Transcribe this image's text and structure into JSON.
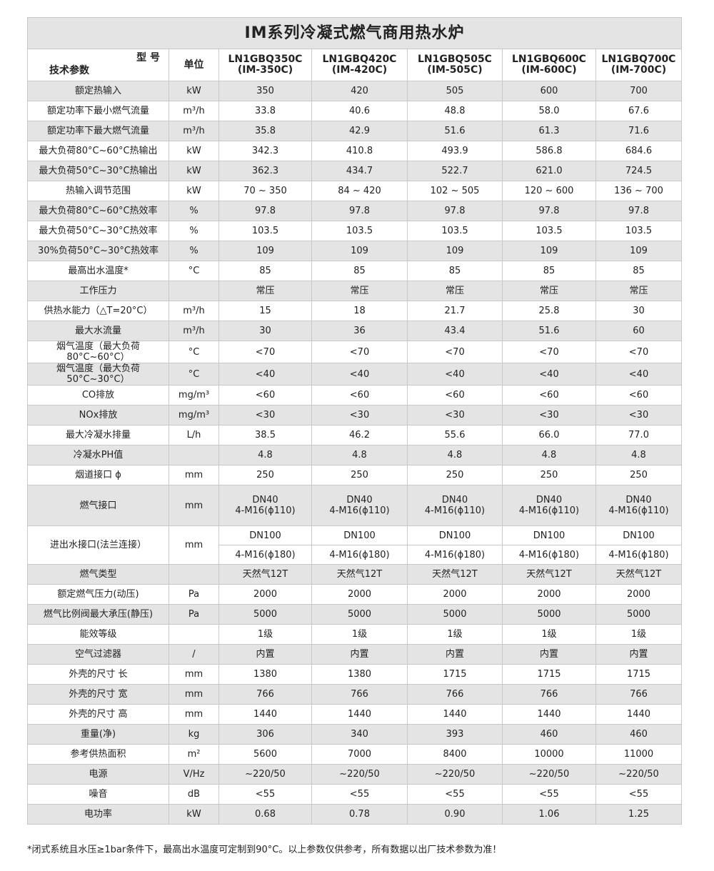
{
  "title": "IM系列冷凝式燃气商用热水炉",
  "header": {
    "model_label": "型 号",
    "param_label": "技术参数",
    "unit_label": "单位",
    "models": [
      [
        "LN1GBQ350C",
        "(IM-350C)"
      ],
      [
        "LN1GBQ420C",
        "(IM-420C)"
      ],
      [
        "LN1GBQ505C",
        "(IM-505C)"
      ],
      [
        "LN1GBQ600C",
        "(IM-600C)"
      ],
      [
        "LN1GBQ700C",
        "(IM-700C)"
      ]
    ]
  },
  "rows": [
    {
      "p": "额定热输入",
      "u": "kW",
      "v": [
        "350",
        "420",
        "505",
        "600",
        "700"
      ]
    },
    {
      "p": "额定功率下最小燃气流量",
      "u": "m³/h",
      "v": [
        "33.8",
        "40.6",
        "48.8",
        "58.0",
        "67.6"
      ]
    },
    {
      "p": "额定功率下最大燃气流量",
      "u": "m³/h",
      "v": [
        "35.8",
        "42.9",
        "51.6",
        "61.3",
        "71.6"
      ]
    },
    {
      "p": "最大负荷80°C~60°C热输出",
      "u": "kW",
      "v": [
        "342.3",
        "410.8",
        "493.9",
        "586.8",
        "684.6"
      ]
    },
    {
      "p": "最大负荷50°C~30°C热输出",
      "u": "kW",
      "v": [
        "362.3",
        "434.7",
        "522.7",
        "621.0",
        "724.5"
      ]
    },
    {
      "p": "热输入调节范围",
      "u": "kW",
      "v": [
        "70 ~ 350",
        "84 ~ 420",
        "102 ~ 505",
        "120 ~ 600",
        "136 ~ 700"
      ]
    },
    {
      "p": "最大负荷80°C~60°C热效率",
      "u": "%",
      "v": [
        "97.8",
        "97.8",
        "97.8",
        "97.8",
        "97.8"
      ]
    },
    {
      "p": "最大负荷50°C~30°C热效率",
      "u": "%",
      "v": [
        "103.5",
        "103.5",
        "103.5",
        "103.5",
        "103.5"
      ]
    },
    {
      "p": "30%负荷50°C~30°C热效率",
      "u": "%",
      "v": [
        "109",
        "109",
        "109",
        "109",
        "109"
      ]
    },
    {
      "p": "最高出水温度*",
      "u": "°C",
      "v": [
        "85",
        "85",
        "85",
        "85",
        "85"
      ]
    },
    {
      "p": "工作压力",
      "u": "",
      "v": [
        "常压",
        "常压",
        "常压",
        "常压",
        "常压"
      ]
    },
    {
      "p": "供热水能力（△T=20°C）",
      "u": "m³/h",
      "v": [
        "15",
        "18",
        "21.7",
        "25.8",
        "30"
      ]
    },
    {
      "p": "最大水流量",
      "u": "m³/h",
      "v": [
        "30",
        "36",
        "43.4",
        "51.6",
        "60"
      ]
    },
    {
      "p": "烟气温度（最大负荷80°C~60°C）",
      "u": "°C",
      "v": [
        "<70",
        "<70",
        "<70",
        "<70",
        "<70"
      ]
    },
    {
      "p": "烟气温度（最大负荷50°C~30°C）",
      "u": "°C",
      "v": [
        "<40",
        "<40",
        "<40",
        "<40",
        "<40"
      ]
    },
    {
      "p": "CO排放",
      "u": "mg/m³",
      "v": [
        "<60",
        "<60",
        "<60",
        "<60",
        "<60"
      ]
    },
    {
      "p": "NOx排放",
      "u": "mg/m³",
      "v": [
        "<30",
        "<30",
        "<30",
        "<30",
        "<30"
      ]
    },
    {
      "p": "最大冷凝水排量",
      "u": "L/h",
      "v": [
        "38.5",
        "46.2",
        "55.6",
        "66.0",
        "77.0"
      ]
    },
    {
      "p": "冷凝水PH值",
      "u": "",
      "v": [
        "4.8",
        "4.8",
        "4.8",
        "4.8",
        "4.8"
      ]
    },
    {
      "p": "烟道接口 ϕ",
      "u": "mm",
      "v": [
        "250",
        "250",
        "250",
        "250",
        "250"
      ]
    },
    {
      "p": "燃气接口",
      "u": "mm",
      "v": [
        "DN40\n4-M16(ϕ110)",
        "DN40\n4-M16(ϕ110)",
        "DN40\n4-M16(ϕ110)",
        "DN40\n4-M16(ϕ110)",
        "DN40\n4-M16(ϕ110)"
      ],
      "tall": true
    },
    {
      "p": "进出水接口(法兰连接）",
      "u": "mm",
      "v": [
        "DN100",
        "DN100",
        "DN100",
        "DN100",
        "DN100"
      ],
      "v2": [
        "4-M16(ϕ180)",
        "4-M16(ϕ180)",
        "4-M16(ϕ180)",
        "4-M16(ϕ180)",
        "4-M16(ϕ180)"
      ]
    },
    {
      "p": "燃气类型",
      "u": "",
      "v": [
        "天然气12T",
        "天然气12T",
        "天然气12T",
        "天然气12T",
        "天然气12T"
      ]
    },
    {
      "p": "额定燃气压力(动压)",
      "u": "Pa",
      "v": [
        "2000",
        "2000",
        "2000",
        "2000",
        "2000"
      ]
    },
    {
      "p": "燃气比例阀最大承压(静压)",
      "u": "Pa",
      "v": [
        "5000",
        "5000",
        "5000",
        "5000",
        "5000"
      ]
    },
    {
      "p": "能效等级",
      "u": "",
      "v": [
        "1级",
        "1级",
        "1级",
        "1级",
        "1级"
      ]
    },
    {
      "p": "空气过滤器",
      "u": "/",
      "v": [
        "内置",
        "内置",
        "内置",
        "内置",
        "内置"
      ]
    },
    {
      "p": "外壳的尺寸 长",
      "u": "mm",
      "v": [
        "1380",
        "1380",
        "1715",
        "1715",
        "1715"
      ]
    },
    {
      "p": "外壳的尺寸 宽",
      "u": "mm",
      "v": [
        "766",
        "766",
        "766",
        "766",
        "766"
      ]
    },
    {
      "p": "外壳的尺寸 高",
      "u": "mm",
      "v": [
        "1440",
        "1440",
        "1440",
        "1440",
        "1440"
      ]
    },
    {
      "p": "重量(净)",
      "u": "kg",
      "v": [
        "306",
        "340",
        "393",
        "460",
        "460"
      ]
    },
    {
      "p": "参考供热面积",
      "u": "m²",
      "v": [
        "5600",
        "7000",
        "8400",
        "10000",
        "11000"
      ]
    },
    {
      "p": "电源",
      "u": "V/Hz",
      "v": [
        "~220/50",
        "~220/50",
        "~220/50",
        "~220/50",
        "~220/50"
      ]
    },
    {
      "p": "噪音",
      "u": "dB",
      "v": [
        "<55",
        "<55",
        "<55",
        "<55",
        "<55"
      ]
    },
    {
      "p": "电功率",
      "u": "kW",
      "v": [
        "0.68",
        "0.78",
        "0.90",
        "1.06",
        "1.25"
      ]
    }
  ],
  "footnote": "*闭式系统且水压≥1bar条件下，最高出水温度可定制到90°C。以上参数仅供参考，所有数据以出厂技术参数为准！"
}
